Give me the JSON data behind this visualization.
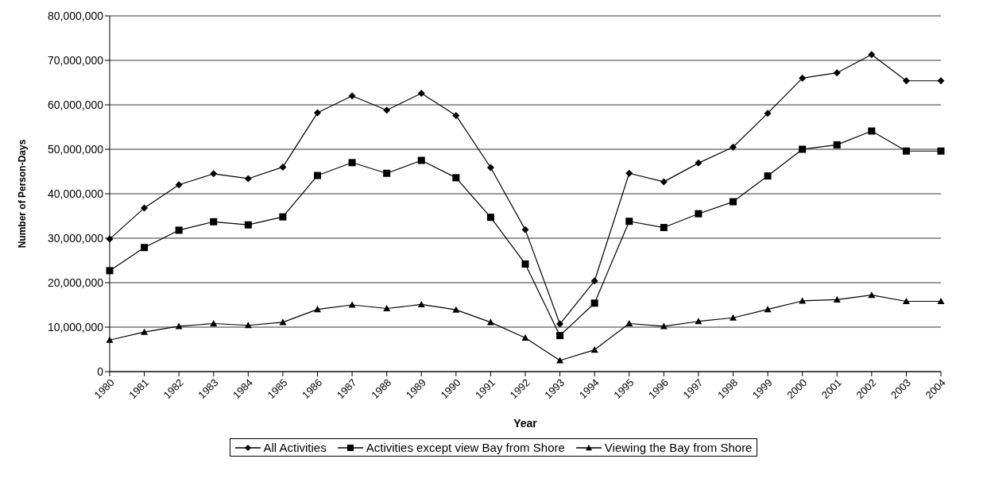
{
  "chart_data": {
    "type": "line",
    "xlabel": "Year",
    "ylabel": "Number of Person-Days",
    "categories": [
      "1980",
      "1981",
      "1982",
      "1983",
      "1984",
      "1985",
      "1986",
      "1987",
      "1988",
      "1989",
      "1990",
      "1991",
      "1992",
      "1993",
      "1994",
      "1995",
      "1996",
      "1997",
      "1998",
      "1999",
      "2000",
      "2001",
      "2002",
      "2003",
      "2004"
    ],
    "series": [
      {
        "name": "All Activities",
        "color": "#000000",
        "marker": "diamond",
        "values": [
          29800000,
          36800000,
          42000000,
          44500000,
          43400000,
          46000000,
          58200000,
          62000000,
          58800000,
          62600000,
          57600000,
          45900000,
          31900000,
          10700000,
          20400000,
          44600000,
          42700000,
          46900000,
          50500000,
          58100000,
          66000000,
          67200000,
          71300000,
          65400000,
          65400000
        ]
      },
      {
        "name": "Activities except view Bay from Shore",
        "color": "#000000",
        "marker": "square",
        "values": [
          22700000,
          27900000,
          31800000,
          33700000,
          33000000,
          34800000,
          44100000,
          47000000,
          44600000,
          47500000,
          43600000,
          34700000,
          24200000,
          8100000,
          15400000,
          33800000,
          32400000,
          35500000,
          38200000,
          44000000,
          50000000,
          51000000,
          54100000,
          49600000,
          49600000
        ]
      },
      {
        "name": "Viewing the Bay from Shore",
        "color": "#000000",
        "marker": "triangle",
        "values": [
          7100000,
          8900000,
          10200000,
          10800000,
          10400000,
          11100000,
          14000000,
          15000000,
          14200000,
          15100000,
          13900000,
          11100000,
          7600000,
          2500000,
          4900000,
          10800000,
          10200000,
          11300000,
          12100000,
          14000000,
          15900000,
          16200000,
          17200000,
          15800000,
          15800000
        ]
      }
    ],
    "ylim": [
      0,
      80000000
    ],
    "yticks": [
      0,
      {
        "value": 10000000,
        "label": "10,000,000"
      },
      {
        "value": 20000000,
        "label": "20,000,000"
      },
      {
        "value": 30000000,
        "label": "30,000,000"
      },
      {
        "value": 40000000,
        "label": "40,000,000"
      },
      {
        "value": 50000000,
        "label": "50,000,000"
      },
      {
        "value": 60000000,
        "label": "60,000,000"
      },
      {
        "value": 70000000,
        "label": "70,000,000"
      },
      {
        "value": 80000000,
        "label": "80,000,000"
      }
    ],
    "grid": "y",
    "legend": "bottom",
    "line_style": "solid"
  }
}
